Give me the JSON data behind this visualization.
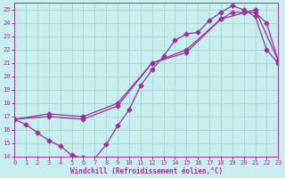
{
  "xlabel": "Windchill (Refroidissement éolien,°C)",
  "xlim": [
    0,
    23
  ],
  "ylim": [
    14,
    25.5
  ],
  "xticks": [
    0,
    1,
    2,
    3,
    4,
    5,
    6,
    7,
    8,
    9,
    10,
    11,
    12,
    13,
    14,
    15,
    16,
    17,
    18,
    19,
    20,
    21,
    22,
    23
  ],
  "yticks": [
    14,
    15,
    16,
    17,
    18,
    19,
    20,
    21,
    22,
    23,
    24,
    25
  ],
  "background_color": "#c8eef0",
  "grid_color": "#aad8cc",
  "line_color": "#993399",
  "line1_x": [
    0,
    1,
    2,
    3,
    4,
    5,
    6,
    7,
    8,
    9,
    10,
    11,
    12,
    13,
    14,
    15,
    16,
    17,
    18,
    19,
    20,
    21,
    22,
    23
  ],
  "line1_y": [
    16.8,
    16.4,
    15.8,
    15.2,
    14.8,
    14.1,
    13.9,
    13.85,
    14.9,
    16.3,
    17.5,
    19.3,
    20.5,
    21.5,
    22.7,
    23.2,
    23.3,
    24.2,
    24.8,
    25.3,
    25.0,
    24.5,
    22.0,
    21.0
  ],
  "line2_x": [
    0,
    3,
    6,
    9,
    12,
    15,
    18,
    19,
    20,
    21,
    22,
    23
  ],
  "line2_y": [
    16.8,
    17.2,
    17.0,
    18.0,
    21.0,
    21.8,
    24.3,
    24.8,
    24.8,
    24.8,
    24.0,
    21.2
  ],
  "line3_x": [
    0,
    3,
    6,
    9,
    12,
    15,
    18,
    21,
    23
  ],
  "line3_y": [
    16.8,
    17.0,
    16.8,
    17.8,
    21.0,
    22.0,
    24.3,
    25.0,
    21.2
  ],
  "marker_size": 2.5,
  "line_width": 0.9,
  "tick_fontsize": 5.0,
  "label_fontsize": 5.5
}
